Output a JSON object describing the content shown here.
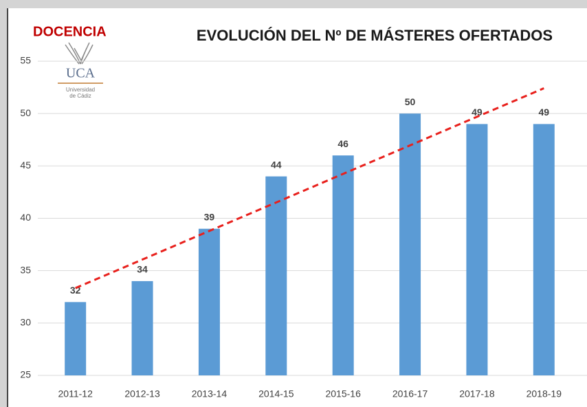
{
  "chart_data": {
    "type": "bar",
    "label": "DOCENCIA",
    "title": "EVOLUCIÓN DEL Nº DE MÁSTERES OFERTADOS",
    "logo": {
      "name": "UCA",
      "line1": "Universidad",
      "line2": "de Cádiz"
    },
    "categories": [
      "2011-12",
      "2012-13",
      "2013-14",
      "2014-15",
      "2015-16",
      "2016-17",
      "2017-18",
      "2018-19"
    ],
    "values": [
      32,
      34,
      39,
      44,
      46,
      50,
      49,
      49
    ],
    "color": "#5b9bd5",
    "ylim": [
      25,
      55
    ],
    "yticks": [
      25,
      30,
      35,
      40,
      45,
      50,
      55
    ],
    "grid": true,
    "trendline": {
      "type": "linear",
      "color": "#e8201c",
      "dashed": true
    }
  }
}
